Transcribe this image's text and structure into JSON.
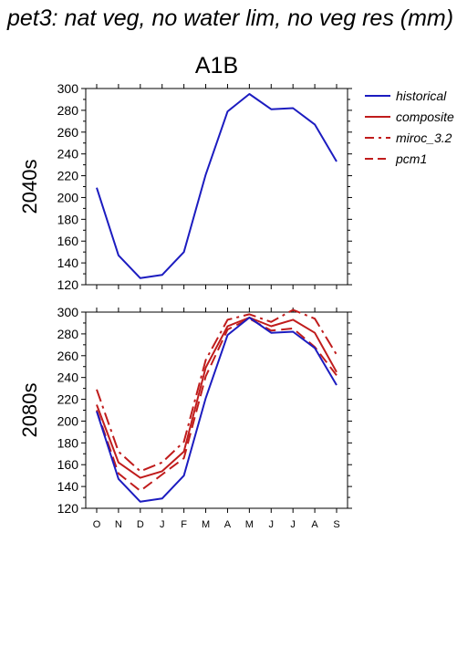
{
  "page_title": "pet3: nat veg, no water lim, no veg res (mm)",
  "chart_data": {
    "type": "line",
    "title": "A1B",
    "categories": [
      "O",
      "N",
      "D",
      "J",
      "F",
      "M",
      "A",
      "M",
      "J",
      "J",
      "A",
      "S"
    ],
    "ylim": [
      120,
      300
    ],
    "yticks": [
      120,
      140,
      160,
      180,
      200,
      220,
      240,
      260,
      280,
      300
    ],
    "colors": {
      "historical": "#1c1cc0",
      "models": "#c01c1c",
      "axis": "#000000"
    },
    "legend": {
      "placement": "right",
      "items": [
        {
          "name": "historical",
          "color": "#1c1cc0",
          "dash": "solid"
        },
        {
          "name": "composite",
          "color": "#c01c1c",
          "dash": "solid"
        },
        {
          "name": "miroc_3.2",
          "color": "#c01c1c",
          "dash": "dashdot"
        },
        {
          "name": "pcm1",
          "color": "#c01c1c",
          "dash": "dash"
        }
      ]
    },
    "panels": [
      {
        "row_label": "2040s",
        "show_xticklabels": false,
        "series": [
          {
            "name": "historical",
            "color": "#1c1cc0",
            "dash": "solid",
            "values": [
              209,
              147,
              126,
              129,
              150,
              221,
              279,
              295,
              281,
              282,
              267,
              233
            ]
          }
        ]
      },
      {
        "row_label": "2080s",
        "show_xticklabels": true,
        "series": [
          {
            "name": "historical",
            "color": "#1c1cc0",
            "dash": "solid",
            "values": [
              209,
              147,
              126,
              129,
              150,
              221,
              279,
              295,
              281,
              282,
              267,
              233
            ]
          },
          {
            "name": "composite",
            "color": "#c01c1c",
            "dash": "solid",
            "values": [
              215,
              162,
              148,
              154,
              172,
              249,
              287,
              295,
              287,
              293,
              281,
              245
            ]
          },
          {
            "name": "miroc_3.2",
            "color": "#c01c1c",
            "dash": "dashdot",
            "values": [
              229,
              172,
              154,
              162,
              181,
              256,
              293,
              298,
              291,
              302,
              294,
              261
            ]
          },
          {
            "name": "pcm1",
            "color": "#c01c1c",
            "dash": "dash",
            "values": [
              210,
              152,
              136,
              151,
              166,
              241,
              284,
              294,
              283,
              285,
              268,
              242
            ]
          }
        ]
      }
    ]
  }
}
